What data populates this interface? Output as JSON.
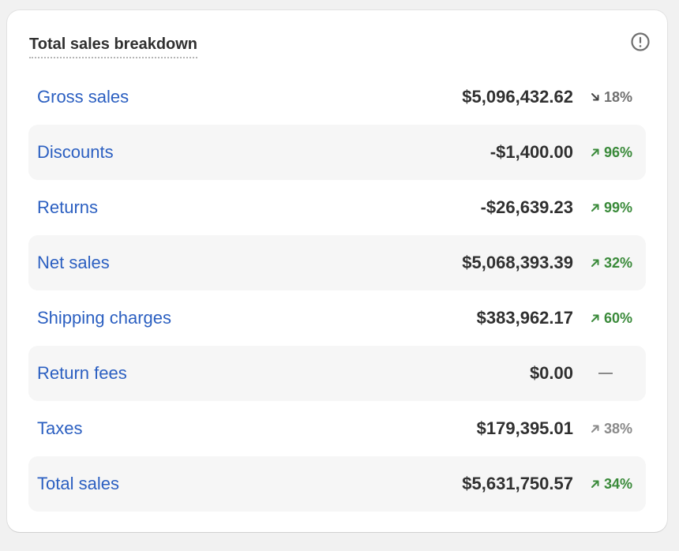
{
  "card": {
    "title": "Total sales breakdown",
    "info_icon": "info-circle-icon"
  },
  "rows": [
    {
      "label": "Gross sales",
      "value": "$5,096,432.62",
      "change": "18%",
      "direction": "down",
      "color": "#707070"
    },
    {
      "label": "Discounts",
      "value": "-$1,400.00",
      "change": "96%",
      "direction": "up",
      "color": "#3a8a3a"
    },
    {
      "label": "Returns",
      "value": "-$26,639.23",
      "change": "99%",
      "direction": "up",
      "color": "#3a8a3a"
    },
    {
      "label": "Net sales",
      "value": "$5,068,393.39",
      "change": "32%",
      "direction": "up",
      "color": "#3a8a3a"
    },
    {
      "label": "Shipping charges",
      "value": "$383,962.17",
      "change": "60%",
      "direction": "up",
      "color": "#3a8a3a"
    },
    {
      "label": "Return fees",
      "value": "$0.00",
      "change": "",
      "direction": "none",
      "color": "#8a8a8a"
    },
    {
      "label": "Taxes",
      "value": "$179,395.01",
      "change": "38%",
      "direction": "up",
      "color": "#8a8a8a"
    },
    {
      "label": "Total sales",
      "value": "$5,631,750.57",
      "change": "34%",
      "direction": "up",
      "color": "#3a8a3a"
    }
  ],
  "colors": {
    "link": "#2b5fc1",
    "positive": "#3a8a3a",
    "neutral": "#8a8a8a",
    "shaded_row": "#f6f6f6"
  }
}
